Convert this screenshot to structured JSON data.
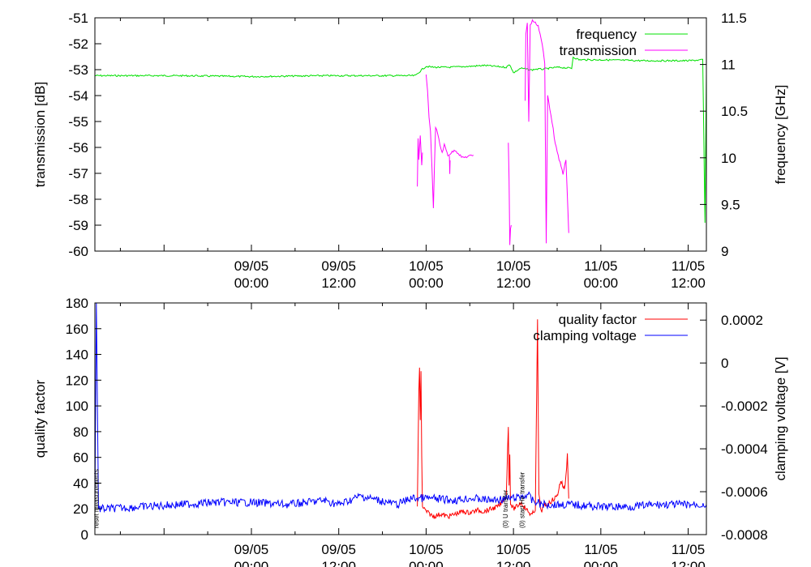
{
  "chart_data": [
    {
      "type": "line",
      "id": "top",
      "ylabel_left": "transmission [dB]",
      "ylabel_right": "frequency [GHz]",
      "y_left_lim": [
        -60,
        -51
      ],
      "y_right_lim": [
        9,
        11.5
      ],
      "y_left_ticks": [
        "-51",
        "-52",
        "-53",
        "-54",
        "-55",
        "-56",
        "-57",
        "-58",
        "-59",
        "-60"
      ],
      "y_right_ticks": [
        "11.5",
        "11",
        "10.5",
        "10",
        "9.5",
        "9"
      ],
      "x_lim_hours": [
        -21.5,
        62.5
      ],
      "x_ticks": [
        {
          "date": "09/05",
          "time": "00:00",
          "hours": 0
        },
        {
          "date": "09/05",
          "time": "12:00",
          "hours": 12
        },
        {
          "date": "10/05",
          "time": "00:00",
          "hours": 24
        },
        {
          "date": "10/05",
          "time": "12:00",
          "hours": 36
        },
        {
          "date": "11/05",
          "time": "00:00",
          "hours": 48
        },
        {
          "date": "11/05",
          "time": "12:00",
          "hours": 60
        }
      ],
      "legend": {
        "position": "top-right",
        "entries": [
          {
            "label": "frequency",
            "color": "#00e000"
          },
          {
            "label": "transmission",
            "color": "#ff00ff"
          }
        ]
      },
      "series": [
        {
          "name": "frequency",
          "axis": "right",
          "color": "#00e000",
          "x": [
            -21.5,
            -10,
            0,
            10,
            22.5,
            23.5,
            24,
            25,
            27,
            30,
            32,
            35,
            35.5,
            36,
            37,
            38.5,
            39,
            40,
            42,
            44,
            44.2,
            45,
            48,
            54,
            60,
            62,
            62.3,
            62.5
          ],
          "y": [
            10.88,
            10.88,
            10.87,
            10.88,
            10.88,
            10.95,
            10.98,
            10.97,
            10.97,
            10.98,
            10.99,
            10.97,
            11.0,
            10.91,
            10.96,
            10.94,
            10.95,
            10.95,
            10.97,
            10.96,
            11.08,
            11.05,
            11.05,
            11.04,
            11.04,
            11.05,
            9.3,
            10.9
          ]
        },
        {
          "name": "transmission",
          "axis": "left",
          "color": "#ff00ff",
          "segments": [
            {
              "x": [
                22.8,
                22.9,
                23.0,
                23.2,
                23.4,
                23.5
              ],
              "y": [
                -57.5,
                -55.7,
                -56.5,
                -55.5,
                -56.7,
                -56.2
              ]
            },
            {
              "x": [
                24.0,
                24.2,
                24.4,
                24.6,
                24.8,
                25.0,
                25.3,
                25.6,
                25.9,
                26.2,
                26.5,
                27,
                28,
                29,
                30.5
              ],
              "y": [
                -53.2,
                -53.8,
                -54.8,
                -55.4,
                -56.8,
                -58.3,
                -55.2,
                -55.5,
                -55.9,
                -56.2,
                -55.9,
                -56.3,
                -56.1,
                -56.4,
                -56.3
              ]
            },
            {
              "x": [
                27.2,
                27.25,
                27.3
              ],
              "y": [
                -56.3,
                -57.0,
                -56.5
              ]
            },
            {
              "x": [
                35.3,
                35.4,
                35.5,
                35.6,
                35.7
              ],
              "y": [
                -55.8,
                -57.2,
                -59.8,
                -59.1,
                -59.0
              ]
            },
            {
              "x": [
                37.6,
                37.7,
                37.9,
                38.1,
                38.3,
                38.6,
                39.0,
                39.4,
                39.8,
                40.1
              ],
              "y": [
                -54.2,
                -51.6,
                -51.2,
                -55.0,
                -51.3,
                -51.1,
                -51.2,
                -51.3,
                -51.8,
                -52.3
              ]
            },
            {
              "x": [
                40.1,
                40.3,
                40.5,
                40.7,
                41.0,
                41.3,
                41.6,
                42.0,
                42.4,
                42.8,
                43.2,
                43.6
              ],
              "y": [
                -52.3,
                -52.8,
                -59.7,
                -54.0,
                -54.5,
                -55.0,
                -55.6,
                -56.2,
                -56.6,
                -57.0,
                -56.5,
                -59.3
              ]
            }
          ]
        }
      ]
    },
    {
      "type": "line",
      "id": "bottom",
      "ylabel_left": "quality factor",
      "ylabel_right": "clamping voltage [V]",
      "y_left_lim": [
        0,
        180
      ],
      "y_right_lim": [
        -0.0008,
        0.00028
      ],
      "y_left_ticks": [
        "180",
        "160",
        "140",
        "120",
        "100",
        "80",
        "60",
        "40",
        "20",
        "0"
      ],
      "y_right_ticks": [
        "0.0002",
        "0",
        "-0.0002",
        "-0.0004",
        "-0.0006",
        "-0.0008"
      ],
      "x_lim_hours": [
        -21.5,
        62.5
      ],
      "x_ticks": [
        {
          "date": "09/05",
          "time": "00:00",
          "hours": 0
        },
        {
          "date": "09/05",
          "time": "12:00",
          "hours": 12
        },
        {
          "date": "10/05",
          "time": "00:00",
          "hours": 24
        },
        {
          "date": "10/05",
          "time": "12:00",
          "hours": 36
        },
        {
          "date": "11/05",
          "time": "00:00",
          "hours": 48
        },
        {
          "date": "11/05",
          "time": "12:00",
          "hours": 60
        }
      ],
      "legend": {
        "position": "top-right",
        "entries": [
          {
            "label": "quality factor",
            "color": "#ff0000"
          },
          {
            "label": "clamping voltage",
            "color": "#0000ff"
          }
        ]
      },
      "series": [
        {
          "name": "quality factor",
          "axis": "left",
          "color": "#ff0000",
          "x": [
            22.8,
            23.0,
            23.1,
            23.2,
            23.3,
            23.4,
            23.5,
            24,
            25,
            26,
            27,
            28,
            29,
            30,
            31,
            32,
            33,
            34,
            35,
            35.3,
            35.4,
            35.5,
            35.6,
            35.8,
            36.0,
            36.5,
            37,
            38,
            38.5,
            39.0,
            39.3,
            39.5,
            39.8,
            40.2,
            41,
            42,
            42.5,
            43,
            43.2,
            43.4,
            43.6
          ],
          "y": [
            22,
            110,
            128,
            90,
            127,
            60,
            22,
            18,
            14,
            16,
            14,
            16,
            18,
            17,
            19,
            18,
            20,
            22,
            30,
            84,
            40,
            62,
            25,
            22,
            20,
            22,
            25,
            18,
            15,
            20,
            166,
            30,
            18,
            22,
            25,
            30,
            42,
            35,
            45,
            62,
            28
          ]
        },
        {
          "name": "clamping voltage",
          "axis": "right",
          "color": "#0000ff",
          "x": [
            -21.5,
            -21.3,
            -21.0,
            -20,
            -15,
            -10,
            -5,
            0,
            5,
            10,
            12,
            15,
            20,
            22,
            24,
            28,
            30,
            33,
            36,
            37.5,
            38,
            38.5,
            40,
            44,
            48,
            52,
            56,
            60,
            62.5
          ],
          "y": [
            -0.00068,
            0.00028,
            -0.00068,
            -0.00068,
            -0.00067,
            -0.00066,
            -0.00065,
            -0.00065,
            -0.00066,
            -0.00064,
            -0.00066,
            -0.00062,
            -0.00066,
            -0.00063,
            -0.00063,
            -0.00064,
            -0.00063,
            -0.00064,
            -0.00063,
            -0.00062,
            -0.00061,
            -0.00064,
            -0.00066,
            -0.00066,
            -0.00067,
            -0.00067,
            -0.00066,
            -0.00066,
            -0.00066
          ]
        }
      ],
      "markers": [
        {
          "x_hours": -21.0,
          "label": "reset measurements",
          "color": "#000000"
        },
        {
          "x_hours": 35.2,
          "label": "(0) U transfer",
          "color": "#000000"
        },
        {
          "x_hours": 37.5,
          "label": "(0) start He transfer",
          "color": "#ff0000"
        }
      ]
    }
  ]
}
